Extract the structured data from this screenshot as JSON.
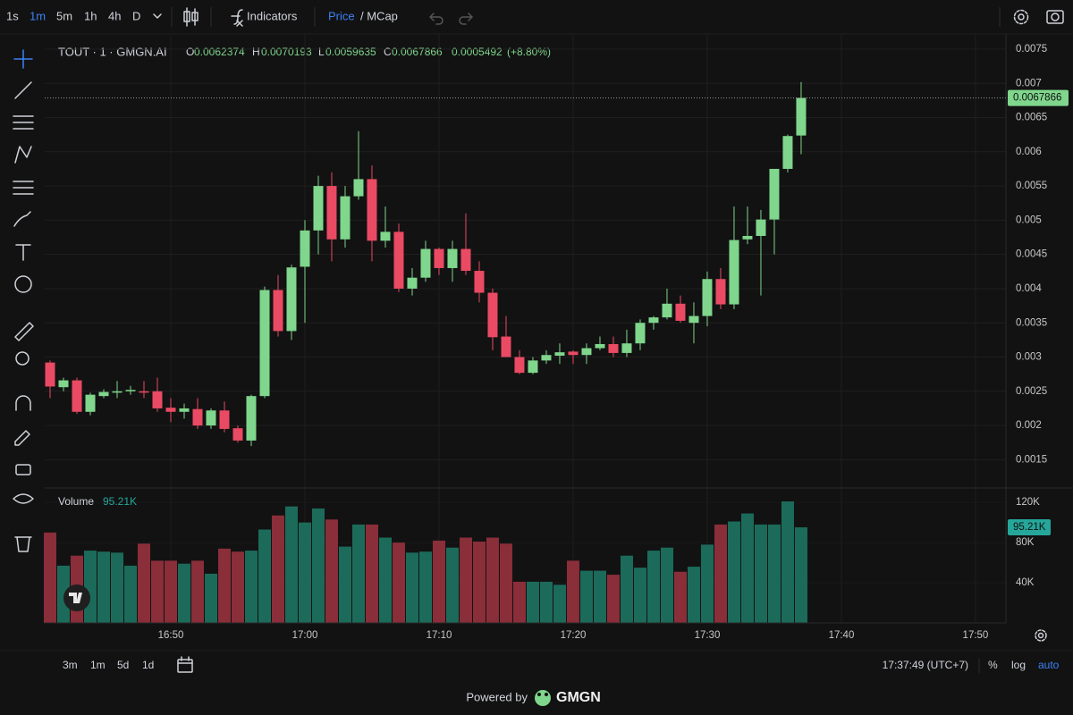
{
  "toolbar": {
    "intervals": [
      "1s",
      "1m",
      "5m",
      "1h",
      "4h",
      "D"
    ],
    "indicators": "Indicators",
    "price": "Price",
    "mcap": "/ MCap"
  },
  "chart_data": {
    "type": "candlestick",
    "symbol": "TOUT · 1 · GMGN.AI",
    "ohlc_labels": [
      "O",
      "H",
      "L",
      "C"
    ],
    "change": 0.0005492,
    "change_pct": {
      "value": 8.8,
      "label": "(+8.80%)"
    },
    "volume_title": "Volume",
    "x": [
      1001,
      1002,
      1003,
      1004,
      1005,
      1006,
      1007,
      1008,
      1009,
      1010,
      1011,
      1012,
      1013,
      1014,
      1015,
      1016,
      1017,
      1018,
      1019,
      1020,
      1021,
      1022,
      1023,
      1024,
      1025,
      1026,
      1027,
      1028,
      1029,
      1030,
      1031,
      1032,
      1033,
      1034,
      1035,
      1036,
      1037,
      1038,
      1039,
      1040,
      1041,
      1042,
      1043,
      1044,
      1045,
      1046,
      1047,
      1048,
      1049,
      1050,
      1051,
      1052,
      1053,
      1054,
      1055,
      1056,
      1057
    ],
    "open": [
      0.00292,
      0.00256,
      0.00266,
      0.0022,
      0.00243,
      0.00248,
      0.0025,
      0.0025,
      0.0025,
      0.00226,
      0.0022,
      0.00224,
      0.002,
      0.00222,
      0.00196,
      0.00178,
      0.00243,
      0.00398,
      0.00338,
      0.00432,
      0.00485,
      0.0055,
      0.00472,
      0.00535,
      0.0056,
      0.0047,
      0.00483,
      0.004,
      0.00416,
      0.00458,
      0.0043,
      0.00458,
      0.00426,
      0.00394,
      0.0033,
      0.003,
      0.00277,
      0.00295,
      0.00302,
      0.00308,
      0.00303,
      0.00313,
      0.00319,
      0.00306,
      0.0032,
      0.0035,
      0.00358,
      0.00378,
      0.0035,
      0.0036,
      0.00414,
      0.00377,
      0.00472,
      0.00477,
      0.00501,
      0.00575,
      0.0062374
    ],
    "high": [
      0.00295,
      0.0027,
      0.0027,
      0.00248,
      0.00253,
      0.00265,
      0.00258,
      0.00265,
      0.0027,
      0.0024,
      0.00232,
      0.0024,
      0.00225,
      0.00235,
      0.002,
      0.00245,
      0.00403,
      0.0042,
      0.00435,
      0.005,
      0.00565,
      0.0057,
      0.0055,
      0.0063,
      0.0058,
      0.0052,
      0.00495,
      0.0043,
      0.0047,
      0.0046,
      0.0047,
      0.0051,
      0.0044,
      0.004,
      0.0036,
      0.0031,
      0.003,
      0.0031,
      0.0032,
      0.0031,
      0.0032,
      0.0033,
      0.0033,
      0.0034,
      0.00355,
      0.0036,
      0.004,
      0.0039,
      0.0038,
      0.00425,
      0.0043,
      0.0052,
      0.0052,
      0.00515,
      0.00575,
      0.00625,
      0.0070193
    ],
    "low": [
      0.0024,
      0.0025,
      0.00217,
      0.00215,
      0.0024,
      0.0024,
      0.00245,
      0.0024,
      0.0022,
      0.00205,
      0.0021,
      0.00195,
      0.00195,
      0.0019,
      0.00175,
      0.0017,
      0.0024,
      0.0033,
      0.00325,
      0.0035,
      0.0045,
      0.0044,
      0.0046,
      0.0053,
      0.0044,
      0.0046,
      0.00395,
      0.0039,
      0.0041,
      0.0042,
      0.0041,
      0.0042,
      0.0038,
      0.0031,
      0.003,
      0.00275,
      0.00275,
      0.0029,
      0.0029,
      0.0029,
      0.0029,
      0.0031,
      0.003,
      0.003,
      0.0031,
      0.0034,
      0.00355,
      0.0035,
      0.0032,
      0.00345,
      0.0037,
      0.0037,
      0.00465,
      0.0039,
      0.0045,
      0.0057,
      0.0059635
    ],
    "close": [
      0.00257,
      0.00266,
      0.0022,
      0.00245,
      0.00249,
      0.0025,
      0.00252,
      0.00248,
      0.00225,
      0.0022,
      0.00225,
      0.002,
      0.00222,
      0.00195,
      0.00178,
      0.00243,
      0.00398,
      0.00338,
      0.00431,
      0.00485,
      0.0055,
      0.00472,
      0.00535,
      0.0056,
      0.0047,
      0.00483,
      0.004,
      0.00416,
      0.00458,
      0.0043,
      0.00458,
      0.00426,
      0.00394,
      0.00329,
      0.003,
      0.00277,
      0.00295,
      0.00303,
      0.00307,
      0.00303,
      0.00313,
      0.00319,
      0.00306,
      0.0032,
      0.0035,
      0.00358,
      0.00378,
      0.00353,
      0.0036,
      0.00414,
      0.00377,
      0.00471,
      0.00477,
      0.00501,
      0.00575,
      0.00623,
      0.0067866
    ],
    "volume": [
      90000,
      57000,
      67000,
      72000,
      71000,
      70000,
      57000,
      79000,
      62000,
      62000,
      59000,
      62000,
      49000,
      74000,
      71000,
      72000,
      93000,
      107000,
      116000,
      100000,
      114000,
      103000,
      76000,
      98000,
      98000,
      85000,
      80000,
      70000,
      71000,
      82000,
      75000,
      85000,
      81000,
      85000,
      79000,
      41000,
      41000,
      41000,
      38000,
      62000,
      52000,
      52000,
      48000,
      67000,
      55000,
      72000,
      75000,
      51000,
      56000,
      78000,
      98000,
      101000,
      109000,
      98000,
      98000,
      121000,
      95210
    ],
    "volume_labels": [
      null,
      null,
      null,
      null,
      null,
      null,
      null,
      null,
      null,
      null,
      null,
      null,
      null,
      null,
      null,
      null,
      null,
      null,
      null,
      null,
      null,
      null,
      null,
      null,
      null,
      null,
      null,
      null,
      null,
      null,
      null,
      null,
      null,
      null,
      null,
      null,
      null,
      null,
      null,
      null,
      null,
      null,
      null,
      null,
      null,
      null,
      null,
      null,
      null,
      null,
      null,
      null,
      null,
      null,
      null,
      null,
      "95.21K"
    ],
    "xlim": [
      1000.6,
      1072.27
    ],
    "xticks": [
      {
        "value": 1010,
        "label": "16:50"
      },
      {
        "value": 1020,
        "label": "17:00"
      },
      {
        "value": 1030,
        "label": "17:10"
      },
      {
        "value": 1040,
        "label": "17:20"
      },
      {
        "value": 1050,
        "label": "17:30"
      },
      {
        "value": 1060,
        "label": "17:40"
      },
      {
        "value": 1070,
        "label": "17:50"
      }
    ],
    "ylim": [
      0.0011,
      0.00763
    ],
    "yticks": [
      0.0015,
      0.002,
      0.0025,
      0.003,
      0.0035,
      0.004,
      0.0045,
      0.005,
      0.0055,
      0.006,
      0.0065,
      0.007,
      0.0075
    ],
    "vlim": [
      0,
      132600
    ],
    "vticks": [
      {
        "value": 40000,
        "label": "40K"
      },
      {
        "value": 80000,
        "label": "80K"
      },
      {
        "value": 120000,
        "label": "120K"
      }
    ],
    "grid": true,
    "up_color": "#7fd68c",
    "down_color": "#ea4a63",
    "volume_up_color": "#1c6b5a",
    "volume_down_color": "#8a2e3a"
  },
  "bottom_bar": {
    "ranges": [
      "3m",
      "1m",
      "5d",
      "1d"
    ],
    "clock": "17:37:49 (UTC+7)",
    "percent": "%",
    "log": "log",
    "auto": "auto"
  },
  "footer": {
    "powered": "Powered by",
    "brand": "GMGN"
  }
}
